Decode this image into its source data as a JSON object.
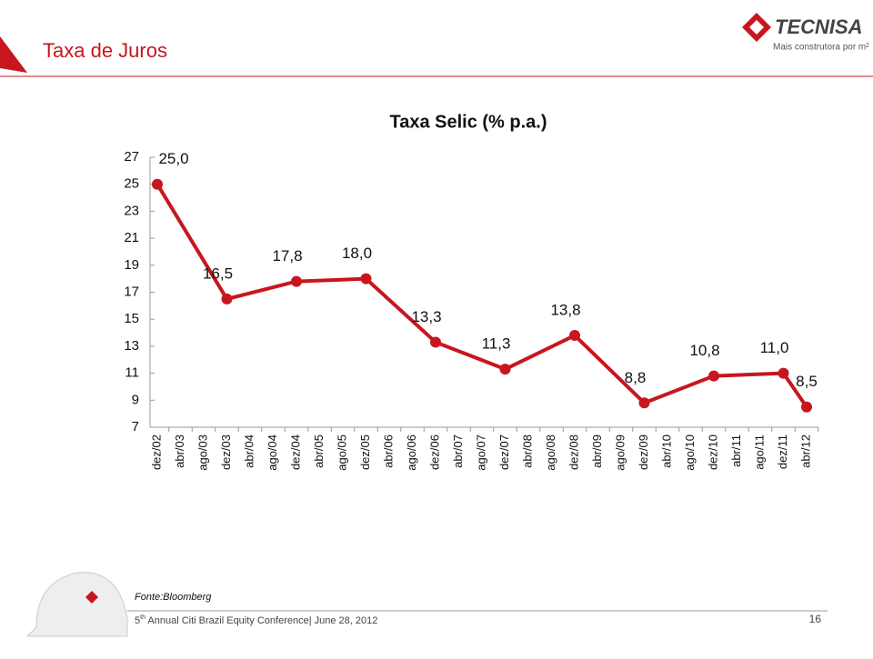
{
  "slide": {
    "title": "Taxa de Juros",
    "logo": "TECNISA",
    "tagline": "Mais construtora por m²",
    "source": "Fonte:Bloomberg",
    "footer_number": "5",
    "footer_sup": "th",
    "footer_text": " Annual Citi Brazil Equity Conference| June 28, 2012",
    "page": "16"
  },
  "chart_data": {
    "type": "line",
    "title": "Taxa Selic (% p.a.)",
    "categories": [
      "dez/02",
      "abr/03",
      "ago/03",
      "dez/03",
      "abr/04",
      "ago/04",
      "dez/04",
      "abr/05",
      "ago/05",
      "dez/05",
      "abr/06",
      "ago/06",
      "dez/06",
      "abr/07",
      "ago/07",
      "dez/07",
      "abr/08",
      "ago/08",
      "dez/08",
      "abr/09",
      "ago/09",
      "dez/09",
      "abr/10",
      "ago/10",
      "dez/10",
      "abr/11",
      "ago/11",
      "dez/11",
      "abr/12"
    ],
    "series": [
      {
        "color": "#c8161e",
        "x": [
          "dez/02",
          "dez/03",
          "dez/04",
          "dez/05",
          "dez/06",
          "dez/07",
          "dez/08",
          "dez/09",
          "dez/10",
          "dez/11",
          "abr/12"
        ],
        "values": [
          25.0,
          16.5,
          17.8,
          18.0,
          13.3,
          11.3,
          13.8,
          8.8,
          10.8,
          11.0,
          8.5
        ],
        "value_labels": [
          "25,0",
          "16,5",
          "17,8",
          "18,0",
          "13,3",
          "11,3",
          "13,8",
          "8,8",
          "10,8",
          "11,0",
          "8,5"
        ]
      }
    ],
    "ylim": [
      7,
      27
    ],
    "yticks": [
      7,
      9,
      11,
      13,
      15,
      17,
      19,
      21,
      23,
      25,
      27
    ]
  }
}
